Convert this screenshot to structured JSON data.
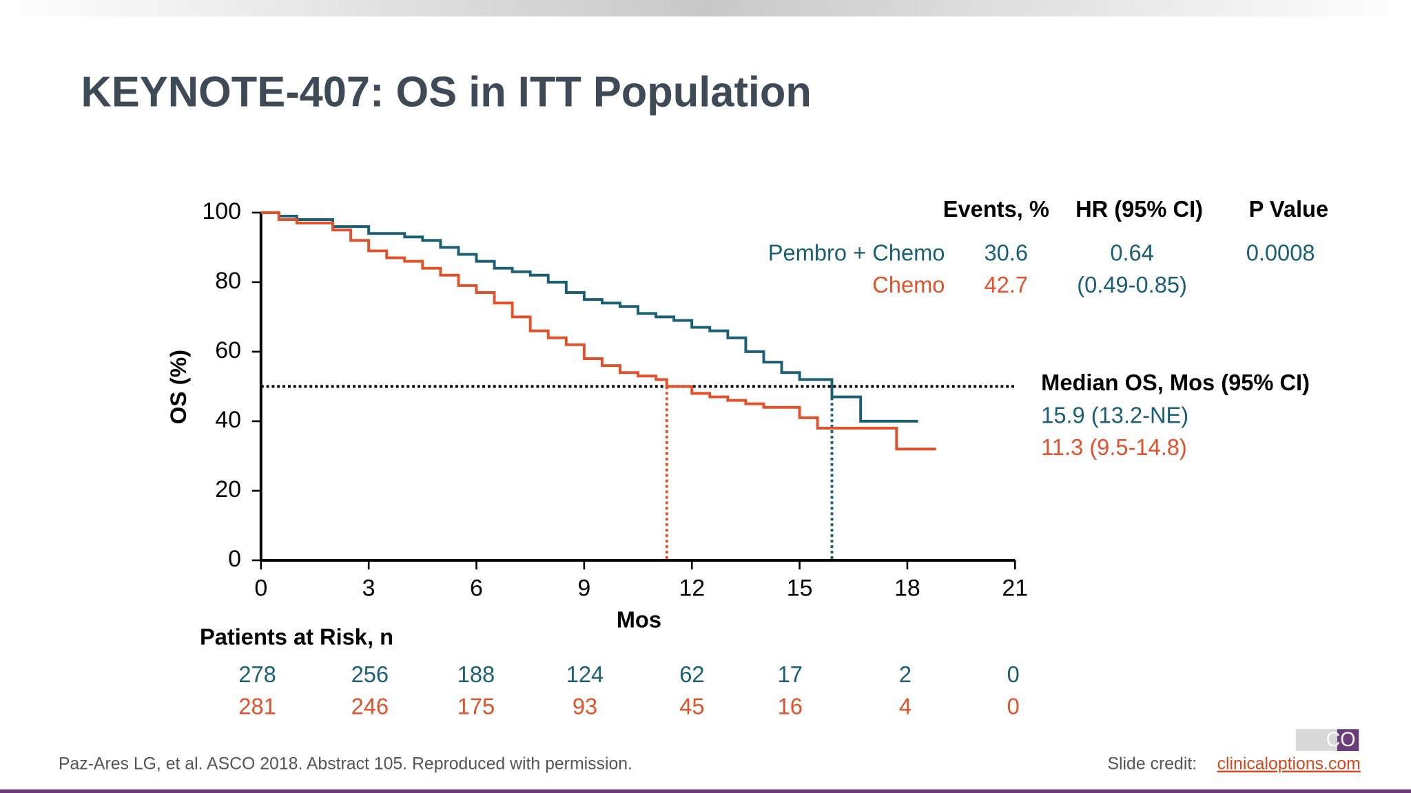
{
  "chart_data": {
    "type": "line",
    "step": true,
    "title": "KEYNOTE-407: OS in ITT Population",
    "x_label": "Mos",
    "y_label": "OS (%)",
    "xlim": [
      0,
      21
    ],
    "xticks": [
      0,
      3,
      6,
      9,
      12,
      15,
      18,
      21
    ],
    "ylim": [
      0,
      100
    ],
    "yticks": [
      0,
      20,
      40,
      60,
      80,
      100
    ],
    "median_line": 50,
    "series": [
      {
        "name": "Pembro + Chemo",
        "color": "#1b5f75",
        "median": 15.9,
        "x": [
          0,
          0.5,
          1,
          2,
          3,
          4,
          4.5,
          5,
          5.5,
          6,
          6.5,
          7,
          7.5,
          8,
          8.5,
          9,
          9.5,
          10,
          10.5,
          11,
          11.5,
          12,
          12.5,
          13,
          13.5,
          14,
          14.5,
          15,
          15.9,
          16.7,
          18.3
        ],
        "values": [
          100,
          99,
          98,
          96,
          94,
          93,
          92,
          90,
          88,
          86,
          84,
          83,
          82,
          80,
          77,
          75,
          74,
          73,
          71,
          70,
          69,
          67,
          66,
          64,
          60,
          57,
          54,
          52,
          47,
          40,
          40
        ]
      },
      {
        "name": "Chemo",
        "color": "#e1522b",
        "median": 11.3,
        "x": [
          0,
          0.5,
          1,
          2,
          2.5,
          3,
          3.5,
          4,
          4.5,
          5,
          5.5,
          6,
          6.5,
          7,
          7.5,
          8,
          8.5,
          9,
          9.5,
          10,
          10.5,
          11,
          11.3,
          12,
          12.5,
          13,
          13.5,
          14,
          15,
          15.5,
          17.7,
          18.8
        ],
        "values": [
          100,
          98,
          97,
          95,
          92,
          89,
          87,
          86,
          84,
          82,
          79,
          77,
          74,
          70,
          66,
          64,
          62,
          58,
          56,
          54,
          53,
          52,
          50,
          48,
          47,
          46,
          45,
          44,
          41,
          38,
          32,
          32
        ]
      }
    ],
    "stats_table": {
      "headers": [
        "Events, %",
        "HR (95% CI)",
        "P Value"
      ],
      "rows": [
        [
          "Pembro + Chemo",
          "30.6",
          "0.64",
          "0.0008"
        ],
        [
          "Chemo",
          "42.7",
          "(0.49-0.85)",
          ""
        ]
      ]
    },
    "median_table": {
      "title": "Median OS, Mos (95% CI)",
      "rows": [
        "15.9 (13.2-NE)",
        "11.3 (9.5-14.8)"
      ]
    },
    "at_risk": {
      "title": "Patients at Risk, n",
      "rows": [
        [
          "278",
          "256",
          "188",
          "124",
          "62",
          "17",
          "2",
          "0"
        ],
        [
          "281",
          "246",
          "175",
          "93",
          "45",
          "16",
          "4",
          "0"
        ]
      ]
    }
  },
  "footer": {
    "citation": "Paz-Ares LG, et al. ASCO 2018. Abstract 105. Reproduced with permission.",
    "credit_label": "Slide credit:",
    "credit_link": "clinicaloptions.com",
    "logo": "CO"
  }
}
